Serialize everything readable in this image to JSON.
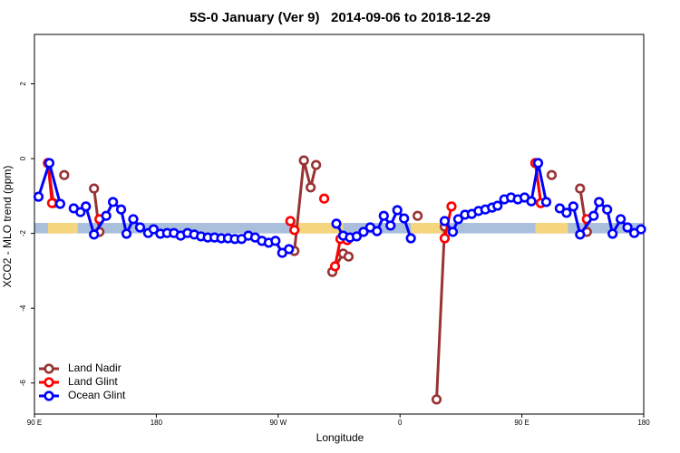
{
  "chart_data": {
    "type": "line",
    "title": "5S-0 January (Ver 9)   2014-09-06 to 2018-12-29",
    "x_label": "Longitude",
    "y_label": "XCO2 - MLO trend (ppm)",
    "xlim": [
      90,
      540
    ],
    "xticks": [
      {
        "value": 90,
        "label": "90 E"
      },
      {
        "value": 180,
        "label": "180"
      },
      {
        "value": 270,
        "label": "90 W"
      },
      {
        "value": 360,
        "label": "0"
      },
      {
        "value": 450,
        "label": "90 E"
      },
      {
        "value": 540,
        "label": "180"
      }
    ],
    "ylim": [
      -6.83,
      3.32
    ],
    "yticks": [
      -6,
      -4,
      -2,
      0,
      2
    ],
    "legend": "bottom-left",
    "band": {
      "ylim": [
        -2.0,
        -1.72
      ],
      "color": "#a9bfdc",
      "land_color": "#f5d67e",
      "land_spans": [
        [
          100,
          122
        ],
        [
          283,
          318
        ],
        [
          368,
          392
        ],
        [
          460,
          484
        ]
      ]
    },
    "series": [
      {
        "name": "Land Nadir",
        "color": "#993333",
        "x": [
          100,
          104,
          null,
          112,
          null,
          134,
          138,
          null,
          282,
          289,
          294,
          298,
          null,
          310,
          318,
          322,
          null,
          373,
          null,
          387,
          393,
          null,
          460,
          464,
          null,
          472,
          null,
          493,
          498
        ],
        "values": [
          -0.12,
          -1.19,
          null,
          -0.44,
          null,
          -0.8,
          -1.96,
          null,
          -2.47,
          -0.05,
          -0.77,
          -0.17,
          null,
          -3.03,
          -2.54,
          -2.62,
          null,
          -1.53,
          null,
          -6.44,
          -1.82,
          null,
          -0.12,
          -1.19,
          null,
          -0.44,
          null,
          -0.8,
          -1.96
        ]
      },
      {
        "name": "Land Glint",
        "color": "#ff0000",
        "x": [
          100,
          103,
          null,
          138,
          null,
          279,
          282,
          null,
          304,
          null,
          312,
          316,
          321,
          null,
          393,
          398,
          null,
          460,
          464,
          null,
          498
        ],
        "values": [
          -0.12,
          -1.19,
          null,
          -1.62,
          null,
          -1.67,
          -1.91,
          null,
          -1.07,
          null,
          -2.88,
          -2.15,
          -2.18,
          null,
          -2.13,
          -1.28,
          null,
          -0.12,
          -1.19,
          null,
          -1.62
        ]
      },
      {
        "name": "Ocean Glint",
        "color": "#0000ff",
        "x": [
          93,
          101,
          109,
          null,
          119,
          124,
          128,
          134,
          143,
          148,
          154,
          158,
          163,
          168,
          174,
          178,
          183,
          188,
          193,
          198,
          203,
          208,
          213,
          218,
          223,
          228,
          233,
          238,
          243,
          248,
          253,
          258,
          263,
          268,
          273,
          278,
          null,
          313,
          318,
          323,
          328,
          333,
          338,
          343,
          348,
          353,
          358,
          363,
          368,
          null,
          393,
          399,
          403,
          408,
          413,
          418,
          423,
          428,
          432,
          437,
          442,
          447,
          452,
          457,
          462,
          468,
          null,
          478,
          483,
          488,
          493,
          503,
          507,
          513,
          517,
          523,
          528,
          533,
          538
        ],
        "values": [
          -1.02,
          -0.12,
          -1.21,
          null,
          -1.33,
          -1.43,
          -1.28,
          -2.03,
          -1.53,
          -1.16,
          -1.36,
          -2.01,
          -1.62,
          -1.84,
          -1.99,
          -1.89,
          -2.01,
          -1.99,
          -1.99,
          -2.06,
          -1.99,
          -2.03,
          -2.08,
          -2.11,
          -2.11,
          -2.13,
          -2.13,
          -2.15,
          -2.15,
          -2.06,
          -2.11,
          -2.2,
          -2.25,
          -2.2,
          -2.52,
          -2.42,
          null,
          -1.74,
          -2.06,
          -2.11,
          -2.08,
          -1.96,
          -1.84,
          -1.94,
          -1.53,
          -1.79,
          -1.38,
          -1.6,
          -2.13,
          null,
          -1.67,
          -1.96,
          -1.62,
          -1.5,
          -1.48,
          -1.4,
          -1.36,
          -1.31,
          -1.26,
          -1.09,
          -1.04,
          -1.09,
          -1.04,
          -1.14,
          -0.12,
          -1.16,
          null,
          -1.33,
          -1.45,
          -1.28,
          -2.03,
          -1.53,
          -1.16,
          -1.36,
          -2.01,
          -1.62,
          -1.84,
          -1.99,
          -1.89
        ]
      }
    ]
  }
}
